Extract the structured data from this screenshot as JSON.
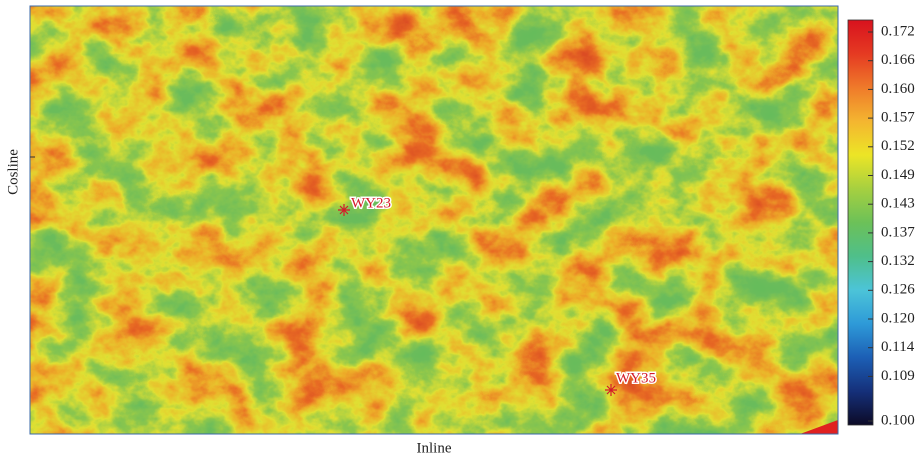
{
  "map": {
    "x_label": "Inline",
    "y_label": "Cosline",
    "wells": [
      {
        "label": "WY23"
      },
      {
        "label": "WY35"
      }
    ]
  },
  "colorbar": {
    "ticks": [
      0.172,
      0.166,
      {
        "value": 0.16,
        "label": "0.160"
      },
      0.157,
      0.152,
      0.149,
      0.143,
      0.137,
      0.132,
      0.126,
      {
        "value": 0.12,
        "label": "0.120"
      },
      0.114,
      0.109,
      {
        "value": 0.1,
        "label": "0.100"
      }
    ],
    "colormap": [
      "#0c0a26",
      "#15307a",
      "#1c5fb5",
      "#2e9ad8",
      "#4cc4d8",
      "#4fbf8a",
      "#6cc158",
      "#a6d040",
      "#ece526",
      "#f4b530",
      "#ef7a2a",
      "#e53a22",
      "#d8121e"
    ]
  }
}
